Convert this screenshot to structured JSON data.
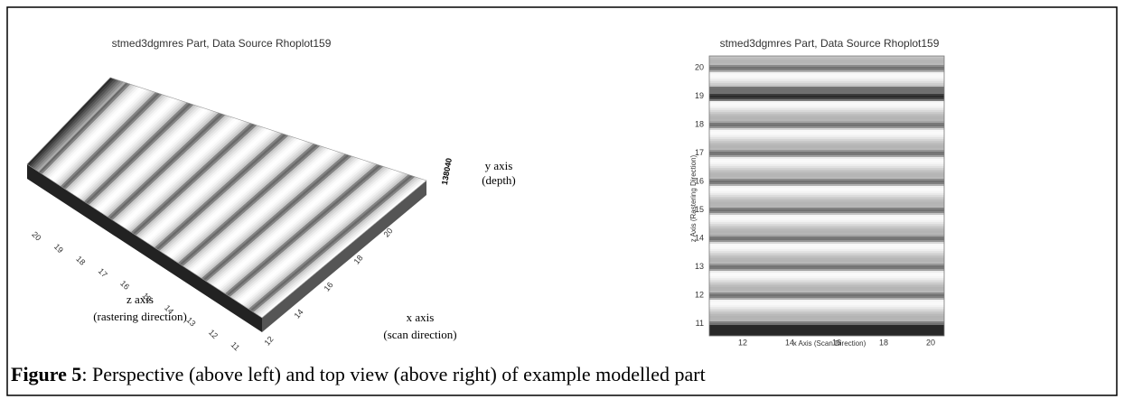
{
  "figure": {
    "left_panel": {
      "title": "stmed3dgmres Part, Data Source Rhoplot159",
      "z_ticks": [
        20,
        19,
        18,
        17,
        16,
        15,
        14,
        13,
        12,
        11
      ],
      "x_ticks": [
        12,
        14,
        16,
        18,
        20
      ],
      "y_tick": "138040",
      "y_axis": {
        "label": "y axis",
        "note": "(depth)"
      },
      "z_axis": {
        "label": "z axis",
        "note": "(rastering direction)"
      },
      "x_axis": {
        "label": "x axis",
        "note": "(scan direction)"
      }
    },
    "right_panel": {
      "title": "stmed3dgmres Part, Data Source Rhoplot159",
      "y_ticks": [
        20,
        19,
        18,
        17,
        16,
        15,
        14,
        13,
        12,
        11
      ],
      "x_ticks": [
        12,
        14,
        16,
        18,
        20
      ],
      "y_label": "z Axis (Rastering Direction)",
      "x_label": "x Axis (Scan Direction)"
    },
    "caption": {
      "label": "Figure 5",
      "text": ": Perspective (above left) and top view (above right) of example modelled part"
    }
  }
}
